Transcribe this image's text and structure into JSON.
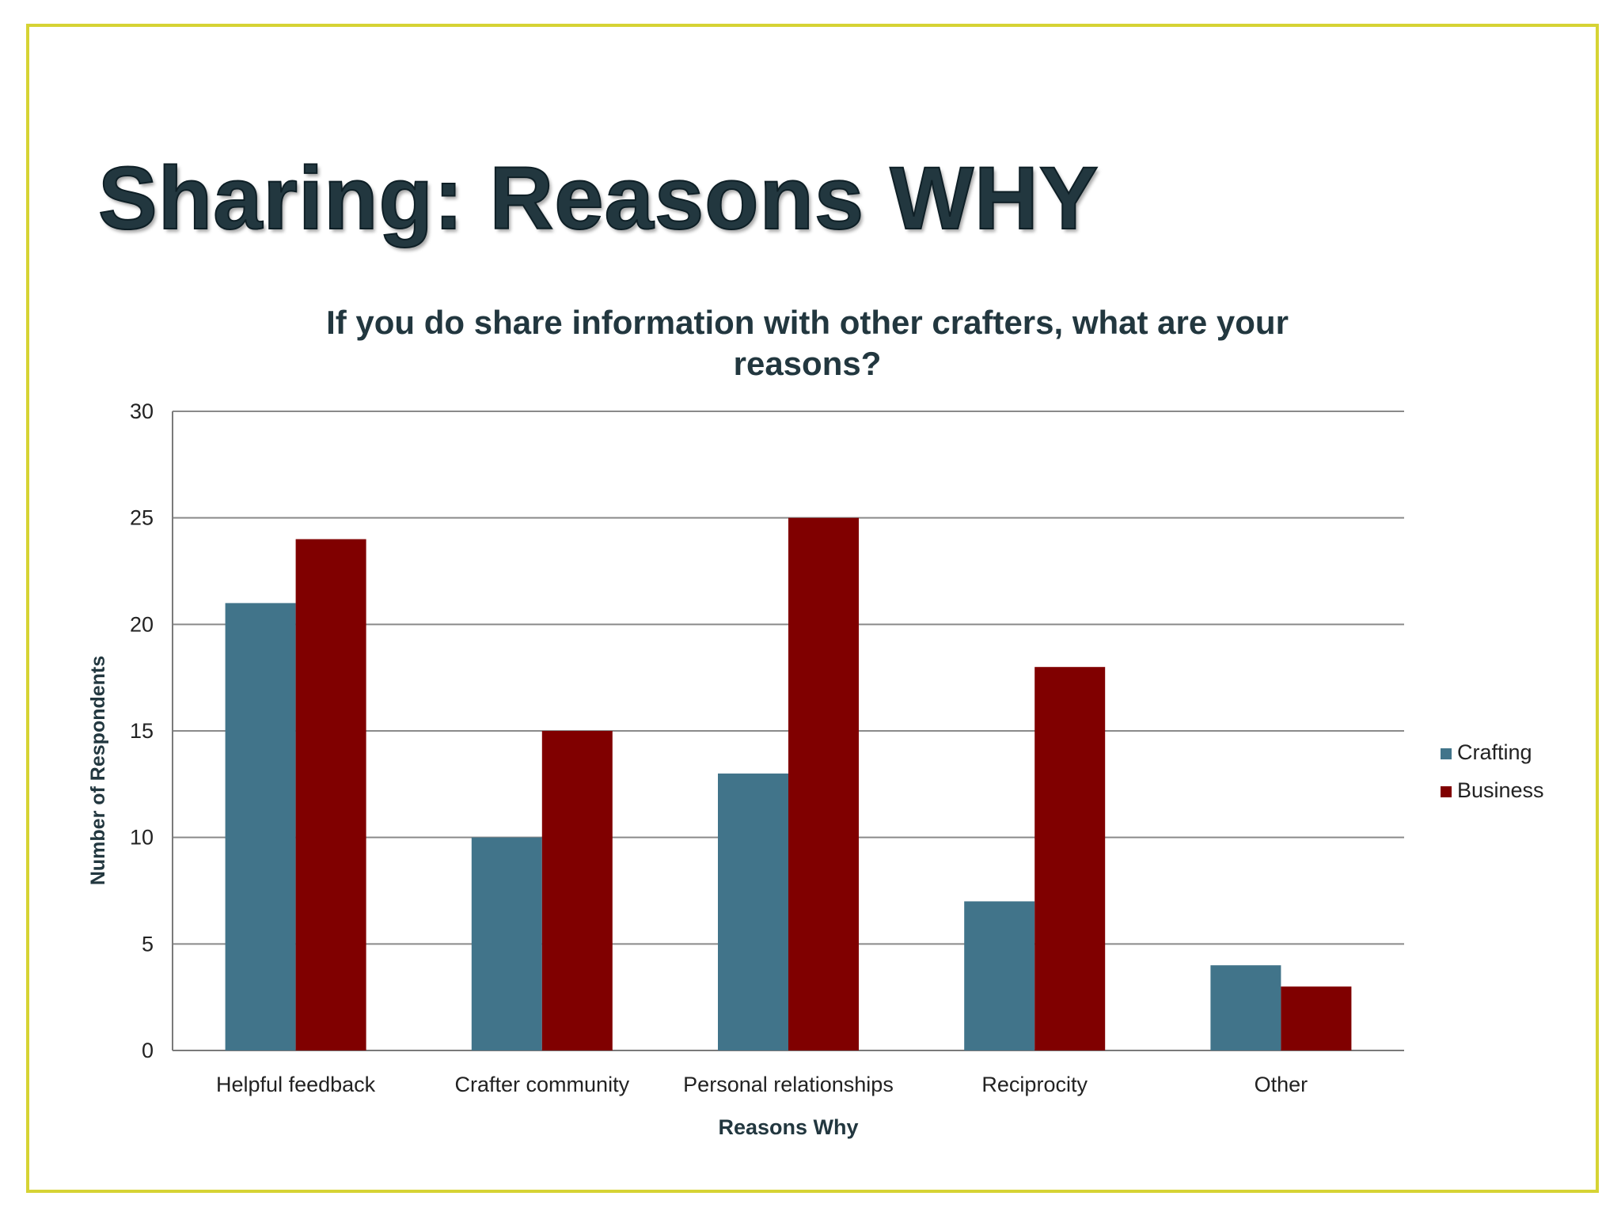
{
  "slide": {
    "title": "Sharing: Reasons WHY"
  },
  "chart_data": {
    "type": "bar",
    "title_lines": [
      "If you do share information with other crafters, what are your",
      "reasons?"
    ],
    "xlabel": "Reasons Why",
    "ylabel": "Number of Respondents",
    "ylim": [
      0,
      30
    ],
    "yticks": [
      0,
      5,
      10,
      15,
      20,
      25,
      30
    ],
    "grid": true,
    "legend_position": "right",
    "categories": [
      "Helpful feedback",
      "Crafter community",
      "Personal relationships",
      "Reciprocity",
      "Other"
    ],
    "series": [
      {
        "name": "Crafting",
        "color": "#41748a",
        "values": [
          21,
          10,
          13,
          7,
          4
        ]
      },
      {
        "name": "Business",
        "color": "#800000",
        "values": [
          24,
          15,
          25,
          18,
          3
        ]
      }
    ]
  }
}
